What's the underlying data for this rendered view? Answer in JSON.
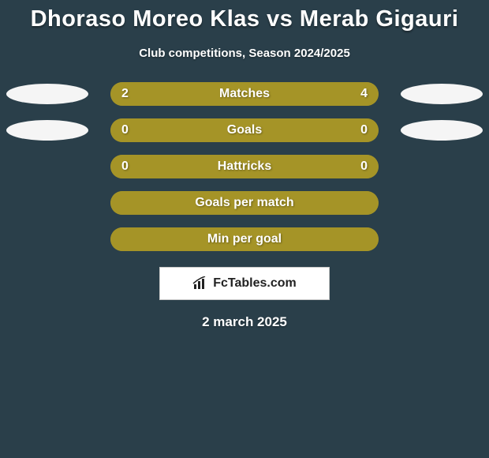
{
  "background_color": "#2a3f4a",
  "title": {
    "text": "Dhoraso Moreo Klas vs Merab Gigauri",
    "color": "#ffffff",
    "fontsize": 29,
    "fontweight": 900
  },
  "subtitle": {
    "text": "Club competitions, Season 2024/2025",
    "color": "#ffffff",
    "fontsize": 15,
    "fontweight": 700
  },
  "bar_colors": {
    "left": "#a59427",
    "right": "#a59427",
    "empty": "#a59427"
  },
  "oval_color": "#f5f5f5",
  "rows": [
    {
      "label": "Matches",
      "left_value": "2",
      "right_value": "4",
      "left_pct": 33.3,
      "right_pct": 66.7,
      "show_left_oval": true,
      "show_right_oval": true
    },
    {
      "label": "Goals",
      "left_value": "0",
      "right_value": "0",
      "left_pct": 50,
      "right_pct": 50,
      "show_left_oval": true,
      "show_right_oval": true
    },
    {
      "label": "Hattricks",
      "left_value": "0",
      "right_value": "0",
      "left_pct": 50,
      "right_pct": 50,
      "show_left_oval": false,
      "show_right_oval": false
    },
    {
      "label": "Goals per match",
      "left_value": "",
      "right_value": "",
      "left_pct": 50,
      "right_pct": 50,
      "show_left_oval": false,
      "show_right_oval": false
    },
    {
      "label": "Min per goal",
      "left_value": "",
      "right_value": "",
      "left_pct": 50,
      "right_pct": 50,
      "show_left_oval": false,
      "show_right_oval": false
    }
  ],
  "logo": {
    "text": "FcTables.com",
    "icon_color": "#222222",
    "box_bg": "#ffffff",
    "box_border": "#c8c8c8"
  },
  "date": {
    "text": "2 march 2025",
    "color": "#ffffff",
    "fontsize": 17
  }
}
